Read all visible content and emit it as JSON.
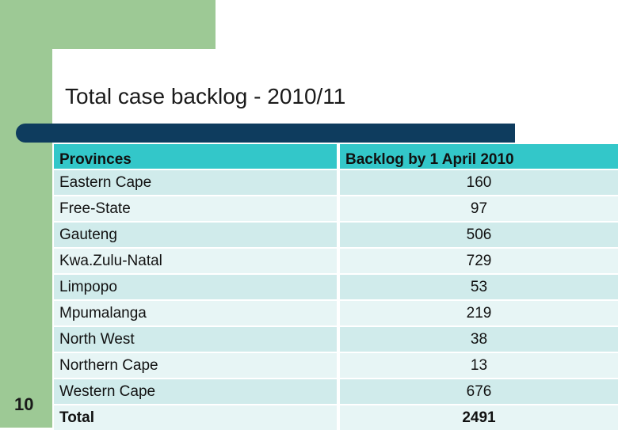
{
  "slide": {
    "title": "Total case backlog - 2010/11",
    "number": "10"
  },
  "table": {
    "headers": {
      "provinces": "Provinces",
      "backlog": "Backlog by 1 April 2010"
    },
    "rows": [
      {
        "province": "Eastern Cape",
        "backlog": "160"
      },
      {
        "province": "Free-State",
        "backlog": "97"
      },
      {
        "province": "Gauteng",
        "backlog": "506"
      },
      {
        "province": "Kwa.Zulu-Natal",
        "backlog": "729"
      },
      {
        "province": "Limpopo",
        "backlog": "53"
      },
      {
        "province": "Mpumalanga",
        "backlog": "219"
      },
      {
        "province": "North West",
        "backlog": "38"
      },
      {
        "province": "Northern Cape",
        "backlog": "13"
      },
      {
        "province": "Western Cape",
        "backlog": "676"
      }
    ],
    "total": {
      "label": "Total",
      "value": "2491"
    }
  },
  "colors": {
    "accent_green": "#9dc995",
    "title_bar": "#0e3c5e",
    "header_fill": "#33c7c9",
    "row_fill": "#d0ebeb"
  }
}
